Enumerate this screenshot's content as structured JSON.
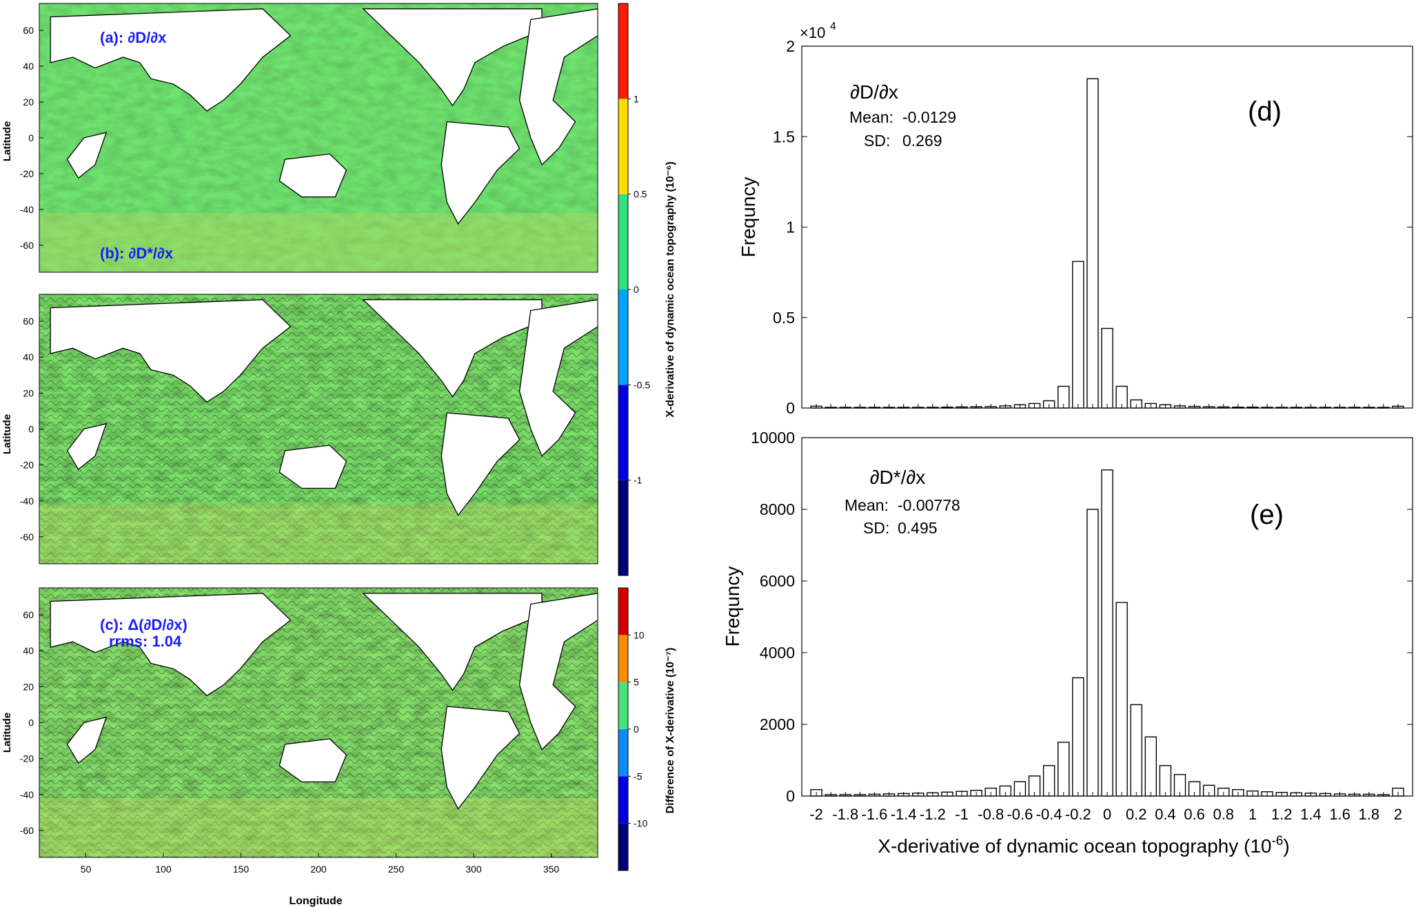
{
  "maps": [
    {
      "label": "(a): ∂D/∂x",
      "lat_ticks": [
        "60",
        "40",
        "20",
        "0",
        "-20",
        "-40",
        "-60"
      ],
      "ylabel": "Latitude"
    },
    {
      "label": "(b): ∂D*/∂x",
      "lat_ticks": [
        "60",
        "40",
        "20",
        "0",
        "-20",
        "-40",
        "-60"
      ],
      "ylabel": "Latitude"
    },
    {
      "label": "(c): Δ(∂D/∂x)",
      "label2": "rrms: 1.04",
      "lat_ticks": [
        "60",
        "40",
        "20",
        "0",
        "-20",
        "-40",
        "-60"
      ],
      "ylabel": "Latitude",
      "lon_ticks": [
        "50",
        "100",
        "150",
        "200",
        "250",
        "300",
        "350"
      ],
      "xlabel": "Longitude"
    }
  ],
  "colorbars": [
    {
      "title": "X-derivative of dynamic ocean topography (10⁻⁶)",
      "ticks": [
        "1",
        "0.5",
        "0",
        "-0.5",
        "-1"
      ],
      "colors": [
        "#00007a",
        "#0000e0",
        "#00a6ff",
        "#33e07a",
        "#ffdd00",
        "#ff1a00"
      ]
    },
    {
      "title": "Difference of X-derivative (10⁻⁷)",
      "ticks": [
        "10",
        "5",
        "0",
        "-5",
        "-10"
      ],
      "colors": [
        "#00007a",
        "#0000e0",
        "#0a8cff",
        "#4ae07a",
        "#ff8c00",
        "#d40000"
      ]
    }
  ],
  "chart_data": [
    {
      "type": "bar",
      "panel": "(d)",
      "name": "∂D/∂x",
      "stats": {
        "mean_label": "Mean:",
        "mean": "-0.0129",
        "sd_label": "SD:",
        "sd": "0.269"
      },
      "multiplier": "×10",
      "multiplier_exp": "4",
      "ylabel": "Frequncy",
      "ylim": [
        0,
        20000
      ],
      "yticks": [
        0,
        5000,
        10000,
        15000,
        20000
      ],
      "ytick_labels": [
        "0",
        "0.5",
        "1",
        "1.5",
        "2"
      ],
      "xlim": [
        -2.1,
        2.1
      ],
      "bin_width": 0.1,
      "x": [
        -2.0,
        -1.9,
        -1.8,
        -1.7,
        -1.6,
        -1.5,
        -1.4,
        -1.3,
        -1.2,
        -1.1,
        -1.0,
        -0.9,
        -0.8,
        -0.7,
        -0.6,
        -0.5,
        -0.4,
        -0.3,
        -0.2,
        -0.1,
        0.0,
        0.1,
        0.2,
        0.3,
        0.4,
        0.5,
        0.6,
        0.7,
        0.8,
        0.9,
        1.0,
        1.1,
        1.2,
        1.3,
        1.4,
        1.5,
        1.6,
        1.7,
        1.8,
        1.9,
        2.0
      ],
      "values": [
        100,
        40,
        40,
        40,
        40,
        40,
        40,
        40,
        40,
        50,
        60,
        70,
        80,
        120,
        180,
        250,
        400,
        1200,
        8100,
        18200,
        4400,
        1200,
        450,
        250,
        180,
        120,
        90,
        70,
        60,
        50,
        50,
        40,
        40,
        40,
        40,
        40,
        40,
        40,
        40,
        40,
        100
      ]
    },
    {
      "type": "bar",
      "panel": "(e)",
      "name": "∂D*/∂x",
      "stats": {
        "mean_label": "Mean:",
        "mean": "-0.00778",
        "sd_label": "SD:",
        "sd": "0.495"
      },
      "ylabel": "Frequncy",
      "ylim": [
        0,
        10000
      ],
      "yticks": [
        0,
        2000,
        4000,
        6000,
        8000,
        10000
      ],
      "ytick_labels": [
        "0",
        "2000",
        "4000",
        "6000",
        "8000",
        "10000"
      ],
      "xlim": [
        -2.1,
        2.1
      ],
      "bin_width": 0.1,
      "x": [
        -2.0,
        -1.9,
        -1.8,
        -1.7,
        -1.6,
        -1.5,
        -1.4,
        -1.3,
        -1.2,
        -1.1,
        -1.0,
        -0.9,
        -0.8,
        -0.7,
        -0.6,
        -0.5,
        -0.4,
        -0.3,
        -0.2,
        -0.1,
        0.0,
        0.1,
        0.2,
        0.3,
        0.4,
        0.5,
        0.6,
        0.7,
        0.8,
        0.9,
        1.0,
        1.1,
        1.2,
        1.3,
        1.4,
        1.5,
        1.6,
        1.7,
        1.8,
        1.9,
        2.0
      ],
      "values": [
        180,
        40,
        40,
        40,
        50,
        60,
        70,
        80,
        90,
        110,
        130,
        160,
        220,
        280,
        400,
        560,
        850,
        1500,
        3300,
        8000,
        9100,
        5400,
        2550,
        1650,
        850,
        600,
        400,
        300,
        220,
        180,
        140,
        120,
        100,
        90,
        80,
        70,
        60,
        50,
        50,
        40,
        220
      ],
      "xticks": [
        -2,
        -1.8,
        -1.6,
        -1.4,
        -1.2,
        -1,
        -0.8,
        -0.6,
        -0.4,
        -0.2,
        0,
        0.2,
        0.4,
        0.6,
        0.8,
        1,
        1.2,
        1.4,
        1.6,
        1.8,
        2
      ],
      "xtick_labels": [
        "-2",
        "-1.8",
        "-1.6",
        "-1.4",
        "-1.2",
        "-1",
        "-0.8",
        "-0.6",
        "-0.4",
        "-0.2",
        "0",
        "0.2",
        "0.4",
        "0.6",
        "0.8",
        "1",
        "1.2",
        "1.4",
        "1.6",
        "1.8",
        "2"
      ],
      "xlabel": "X-derivative of dynamic ocean topography (10",
      "xlabel_exp": "-6",
      "xlabel_tail": ")"
    }
  ]
}
